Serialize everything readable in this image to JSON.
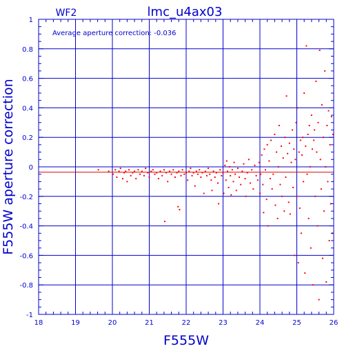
{
  "chart_data": {
    "type": "scatter",
    "title": "lmc_u4ax03",
    "panel_label": "WF2",
    "annotation": "Average aperture correction: -0.036",
    "xlabel": "F555W",
    "ylabel": "F555W aperture correction",
    "xlim": [
      18,
      26
    ],
    "ylim": [
      -1,
      1
    ],
    "x_ticks": [
      18,
      19,
      20,
      21,
      22,
      23,
      24,
      25,
      26
    ],
    "x_tick_labels": [
      "18",
      "19",
      "20",
      "21",
      "22",
      "23",
      "24",
      "25",
      "26"
    ],
    "y_ticks": [
      -1,
      -0.8,
      -0.6,
      -0.4,
      -0.2,
      0,
      0.2,
      0.4,
      0.6,
      0.8,
      1
    ],
    "y_tick_labels": [
      "-1",
      "-0.8",
      "-0.6",
      "-0.4",
      "-0.2",
      "0",
      "0.2",
      "0.4",
      "0.6",
      "0.8",
      "1"
    ],
    "grid": true,
    "reference_lines": [
      {
        "y": 0,
        "color": "#0000cc"
      },
      {
        "y": -0.036,
        "color": "#dd0000"
      }
    ],
    "colors": {
      "axes": "#0000cc",
      "points": "#ff0000",
      "mean_line": "#dd0000"
    },
    "series": [
      {
        "points": [
          [
            19.62,
            -0.02
          ],
          [
            19.9,
            -0.03
          ],
          [
            20.02,
            -0.05
          ],
          [
            20.08,
            -0.02
          ],
          [
            20.12,
            -0.07
          ],
          [
            20.18,
            -0.03
          ],
          [
            20.22,
            -0.01
          ],
          [
            20.28,
            -0.08
          ],
          [
            20.32,
            -0.04
          ],
          [
            20.36,
            -0.03
          ],
          [
            20.4,
            -0.1
          ],
          [
            20.45,
            -0.02
          ],
          [
            20.5,
            -0.06
          ],
          [
            20.55,
            -0.04
          ],
          [
            20.6,
            -0.03
          ],
          [
            20.64,
            -0.08
          ],
          [
            20.7,
            -0.02
          ],
          [
            20.75,
            -0.05
          ],
          [
            20.8,
            -0.03
          ],
          [
            20.86,
            -0.06
          ],
          [
            20.9,
            -0.01
          ],
          [
            20.96,
            -0.04
          ],
          [
            21.0,
            -0.07
          ],
          [
            21.05,
            -0.03
          ],
          [
            21.1,
            -0.02
          ],
          [
            21.15,
            -0.05
          ],
          [
            21.2,
            -0.04
          ],
          [
            21.25,
            -0.08
          ],
          [
            21.3,
            -0.03
          ],
          [
            21.35,
            -0.06
          ],
          [
            21.4,
            -0.02
          ],
          [
            21.42,
            -0.37
          ],
          [
            21.46,
            -0.04
          ],
          [
            21.5,
            -0.1
          ],
          [
            21.55,
            -0.03
          ],
          [
            21.6,
            -0.05
          ],
          [
            21.65,
            -0.02
          ],
          [
            21.7,
            -0.07
          ],
          [
            21.75,
            -0.04
          ],
          [
            21.78,
            -0.27
          ],
          [
            21.8,
            -0.03
          ],
          [
            21.82,
            -0.29
          ],
          [
            21.86,
            -0.06
          ],
          [
            21.9,
            -0.02
          ],
          [
            21.95,
            -0.05
          ],
          [
            22.0,
            -0.04
          ],
          [
            22.04,
            -0.09
          ],
          [
            22.08,
            -0.03
          ],
          [
            22.12,
            -0.01
          ],
          [
            22.16,
            -0.06
          ],
          [
            22.2,
            -0.04
          ],
          [
            22.24,
            -0.13
          ],
          [
            22.28,
            -0.03
          ],
          [
            22.32,
            -0.05
          ],
          [
            22.36,
            -0.02
          ],
          [
            22.4,
            -0.07
          ],
          [
            22.44,
            -0.04
          ],
          [
            22.48,
            -0.18
          ],
          [
            22.52,
            -0.03
          ],
          [
            22.56,
            -0.06
          ],
          [
            22.6,
            -0.01
          ],
          [
            22.64,
            -0.05
          ],
          [
            22.68,
            -0.09
          ],
          [
            22.7,
            -0.16
          ],
          [
            22.74,
            -0.03
          ],
          [
            22.78,
            -0.07
          ],
          [
            22.82,
            -0.04
          ],
          [
            22.86,
            -0.11
          ],
          [
            22.88,
            -0.25
          ],
          [
            22.92,
            -0.02
          ],
          [
            22.96,
            -0.06
          ],
          [
            23.0,
            -0.04
          ],
          [
            23.02,
            -0.18
          ],
          [
            23.05,
            0.01
          ],
          [
            23.08,
            -0.09
          ],
          [
            23.1,
            0.04
          ],
          [
            23.12,
            -0.03
          ],
          [
            23.15,
            -0.14
          ],
          [
            23.18,
            0.0
          ],
          [
            23.2,
            -0.06
          ],
          [
            23.22,
            -0.19
          ],
          [
            23.25,
            -0.02
          ],
          [
            23.28,
            -0.1
          ],
          [
            23.3,
            0.03
          ],
          [
            23.33,
            -0.05
          ],
          [
            23.36,
            -0.16
          ],
          [
            23.4,
            -0.01
          ],
          [
            23.44,
            -0.07
          ],
          [
            23.48,
            -0.12
          ],
          [
            23.52,
            -0.03
          ],
          [
            23.56,
            0.02
          ],
          [
            23.6,
            -0.08
          ],
          [
            23.62,
            -0.2
          ],
          [
            23.66,
            -0.04
          ],
          [
            23.7,
            0.05
          ],
          [
            23.74,
            -0.11
          ],
          [
            23.78,
            -0.02
          ],
          [
            23.82,
            -0.15
          ],
          [
            23.86,
            0.01
          ],
          [
            23.9,
            -0.06
          ],
          [
            23.94,
            -0.09
          ],
          [
            23.98,
            0.03
          ],
          [
            24.0,
            -0.18
          ],
          [
            24.02,
            -0.05
          ],
          [
            24.05,
            0.08
          ],
          [
            24.08,
            -0.12
          ],
          [
            24.1,
            -0.31
          ],
          [
            24.12,
            0.12
          ],
          [
            24.15,
            -0.02
          ],
          [
            24.18,
            -0.22
          ],
          [
            24.2,
            0.15
          ],
          [
            24.22,
            -0.4
          ],
          [
            24.25,
            0.04
          ],
          [
            24.28,
            -0.08
          ],
          [
            24.3,
            0.18
          ],
          [
            24.33,
            -0.15
          ],
          [
            24.36,
            -0.05
          ],
          [
            24.4,
            0.22
          ],
          [
            24.42,
            -0.26
          ],
          [
            24.45,
            0.1
          ],
          [
            24.48,
            -0.35
          ],
          [
            24.5,
            0.0
          ],
          [
            24.52,
            0.28
          ],
          [
            24.55,
            -0.12
          ],
          [
            24.58,
            0.14
          ],
          [
            24.6,
            -0.2
          ],
          [
            24.63,
            0.06
          ],
          [
            24.66,
            -0.3
          ],
          [
            24.68,
            0.2
          ],
          [
            24.7,
            -0.07
          ],
          [
            24.72,
            0.48
          ],
          [
            24.75,
            0.09
          ],
          [
            24.78,
            -0.24
          ],
          [
            24.8,
            0.16
          ],
          [
            24.82,
            -0.32
          ],
          [
            24.85,
            0.03
          ],
          [
            24.88,
            0.25
          ],
          [
            24.9,
            -0.14
          ],
          [
            24.92,
            0.12
          ],
          [
            24.94,
            -0.6
          ],
          [
            24.96,
            0.05
          ],
          [
            24.98,
            0.3
          ],
          [
            25.0,
            -0.2
          ],
          [
            25.02,
            0.4
          ],
          [
            25.04,
            -0.65
          ],
          [
            25.06,
            0.1
          ],
          [
            25.08,
            -0.28
          ],
          [
            25.1,
            0.18
          ],
          [
            25.12,
            -0.45
          ],
          [
            25.14,
            0.08
          ],
          [
            25.16,
            0.2
          ],
          [
            25.18,
            -0.1
          ],
          [
            25.2,
            0.5
          ],
          [
            25.22,
            -0.72
          ],
          [
            25.24,
            0.14
          ],
          [
            25.26,
            0.82
          ],
          [
            25.28,
            -0.05
          ],
          [
            25.3,
            0.22
          ],
          [
            25.32,
            -0.35
          ],
          [
            25.34,
            0.28
          ],
          [
            25.36,
            0.0
          ],
          [
            25.38,
            -0.55
          ],
          [
            25.4,
            0.35
          ],
          [
            25.42,
            0.12
          ],
          [
            25.44,
            -0.8
          ],
          [
            25.46,
            0.18
          ],
          [
            25.48,
            0.25
          ],
          [
            25.5,
            -0.2
          ],
          [
            25.52,
            0.58
          ],
          [
            25.54,
            0.1
          ],
          [
            25.56,
            -0.4
          ],
          [
            25.58,
            0.3
          ],
          [
            25.6,
            -0.9
          ],
          [
            25.62,
            0.79
          ],
          [
            25.64,
            0.05
          ],
          [
            25.66,
            -0.15
          ],
          [
            25.68,
            0.42
          ],
          [
            25.7,
            -0.62
          ],
          [
            25.72,
            0.2
          ],
          [
            25.74,
            -0.3
          ],
          [
            25.76,
            0.65
          ],
          [
            25.78,
            0.0
          ],
          [
            25.8,
            -0.78
          ],
          [
            25.82,
            0.28
          ],
          [
            25.84,
            -0.1
          ],
          [
            25.86,
            0.38
          ],
          [
            25.88,
            -0.5
          ],
          [
            25.9,
            0.15
          ],
          [
            25.92,
            -0.25
          ],
          [
            25.94,
            0.34
          ],
          [
            25.96,
            -0.45
          ],
          [
            25.98,
            0.22
          ]
        ]
      }
    ]
  }
}
